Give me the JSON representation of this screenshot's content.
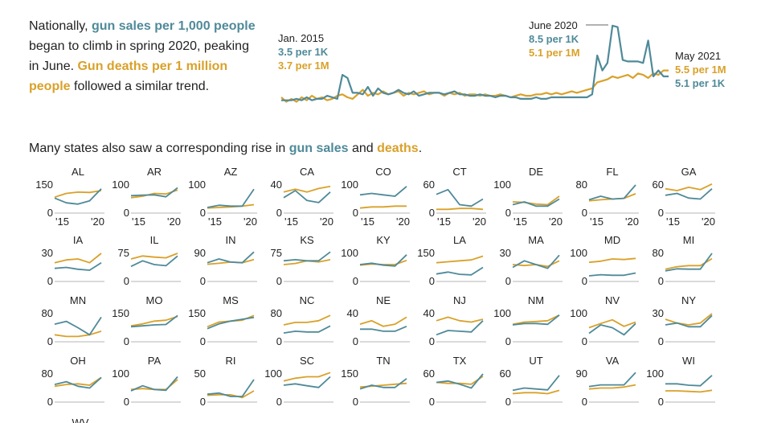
{
  "intro": {
    "t1": "Nationally, ",
    "t2": "gun sales per 1,000 people",
    "t3": " began to climb in spring 2020, peaking in June. ",
    "t4": "Gun deaths per 1 million people",
    "t5": " followed a similar trend."
  },
  "subtitle": {
    "t1": "Many states also saw a corresponding rise in ",
    "t2": "gun sales",
    "t3": " and ",
    "t4": "deaths",
    "t5": "."
  },
  "colors": {
    "sales": "#4f8a99",
    "deaths": "#d9a12a",
    "axis": "#999999",
    "text": "#222222"
  },
  "chart_data": [
    {
      "type": "line",
      "title": "",
      "x_range": [
        "Jan. 2015",
        "May 2021"
      ],
      "annotations": [
        {
          "label": "Jan. 2015",
          "sales": "3.5 per 1K",
          "deaths": "3.7 per 1M"
        },
        {
          "label": "June 2020",
          "sales": "8.5 per 1K",
          "deaths": "5.1 per 1M"
        },
        {
          "label": "May 2021",
          "deaths": "5.5 per 1M",
          "sales": "5.1 per 1K"
        }
      ],
      "series": [
        {
          "name": "gun sales per 1,000 people",
          "values": [
            3.5,
            3.5,
            3.5,
            3.6,
            3.5,
            3.7,
            3.5,
            3.6,
            3.6,
            3.8,
            3.7,
            3.6,
            5.2,
            5.0,
            4.0,
            4.0,
            3.9,
            4.4,
            3.8,
            4.3,
            4.0,
            3.9,
            4.0,
            4.2,
            4.0,
            3.9,
            4.1,
            3.8,
            3.9,
            4.0,
            4.0,
            4.0,
            3.9,
            4.0,
            4.1,
            3.9,
            3.9,
            3.8,
            3.8,
            3.9,
            3.8,
            3.8,
            3.7,
            3.8,
            3.8,
            3.7,
            3.7,
            3.6,
            3.6,
            3.6,
            3.7,
            3.6,
            3.6,
            3.7,
            3.7,
            3.7,
            3.7,
            3.7,
            3.7,
            3.7,
            3.7,
            3.9,
            6.5,
            5.5,
            6.0,
            8.5,
            8.4,
            6.2,
            6.1,
            6.1,
            6.1,
            6.0,
            7.5,
            5.1,
            5.5,
            5.1,
            5.1
          ]
        },
        {
          "name": "gun deaths per 1 million people",
          "values": [
            3.7,
            3.4,
            3.6,
            3.4,
            3.7,
            3.5,
            3.8,
            3.6,
            3.7,
            3.5,
            3.6,
            3.8,
            3.9,
            3.7,
            3.6,
            3.9,
            4.2,
            3.8,
            4.0,
            3.9,
            4.1,
            3.9,
            4.0,
            4.1,
            3.8,
            4.0,
            3.9,
            4.0,
            4.1,
            3.9,
            4.0,
            4.0,
            3.8,
            4.0,
            3.9,
            4.0,
            3.8,
            3.9,
            3.9,
            3.8,
            3.9,
            3.8,
            3.8,
            3.9,
            3.8,
            3.7,
            3.8,
            3.9,
            3.8,
            3.8,
            3.9,
            3.9,
            4.0,
            3.9,
            4.0,
            3.9,
            4.0,
            4.1,
            4.0,
            4.1,
            4.2,
            4.3,
            4.7,
            4.8,
            4.9,
            5.1,
            5.0,
            5.1,
            5.2,
            5.0,
            5.3,
            5.2,
            5.0,
            5.3,
            5.2,
            5.5,
            5.5
          ]
        }
      ]
    },
    {
      "type": "line",
      "x_tick_labels": [
        "'15",
        "'20"
      ],
      "states": [
        {
          "name": "AL",
          "ymax": 150,
          "sales": [
            80,
            55,
            48,
            65,
            130
          ],
          "deaths": [
            85,
            105,
            112,
            110,
            120
          ]
        },
        {
          "name": "AR",
          "ymax": 100,
          "sales": [
            62,
            64,
            65,
            58,
            90
          ],
          "deaths": [
            55,
            60,
            70,
            68,
            82
          ]
        },
        {
          "name": "AZ",
          "ymax": 100,
          "sales": [
            20,
            28,
            25,
            25,
            85
          ],
          "deaths": [
            18,
            20,
            22,
            25,
            30
          ]
        },
        {
          "name": "CA",
          "ymax": 40,
          "sales": [
            22,
            32,
            18,
            15,
            30
          ],
          "deaths": [
            30,
            34,
            30,
            35,
            38
          ]
        },
        {
          "name": "CO",
          "ymax": 100,
          "sales": [
            65,
            70,
            65,
            60,
            95
          ],
          "deaths": [
            18,
            22,
            22,
            25,
            25
          ]
        },
        {
          "name": "CT",
          "ymax": 60,
          "sales": [
            40,
            50,
            18,
            15,
            30
          ],
          "deaths": [
            8,
            8,
            10,
            10,
            8
          ]
        },
        {
          "name": "DE",
          "ymax": 100,
          "sales": [
            30,
            40,
            25,
            25,
            50
          ],
          "deaths": [
            40,
            38,
            32,
            30,
            60
          ]
        },
        {
          "name": "FL",
          "ymax": 80,
          "sales": [
            38,
            48,
            40,
            42,
            80
          ],
          "deaths": [
            35,
            38,
            40,
            42,
            55
          ]
        },
        {
          "name": "GA",
          "ymax": 60,
          "sales": [
            38,
            42,
            32,
            30,
            52
          ],
          "deaths": [
            52,
            48,
            55,
            50,
            62
          ]
        },
        {
          "name": "IA",
          "ymax": 30,
          "sales": [
            14,
            15,
            13,
            12,
            20
          ],
          "deaths": [
            20,
            23,
            24,
            20,
            30
          ]
        },
        {
          "name": "IL",
          "ymax": 75,
          "sales": [
            40,
            55,
            45,
            42,
            68
          ],
          "deaths": [
            60,
            68,
            65,
            63,
            75
          ]
        },
        {
          "name": "IN",
          "ymax": 90,
          "sales": [
            60,
            72,
            62,
            60,
            95
          ],
          "deaths": [
            55,
            58,
            62,
            60,
            70
          ]
        },
        {
          "name": "KS",
          "ymax": 75,
          "sales": [
            55,
            58,
            55,
            55,
            90
          ],
          "deaths": [
            45,
            48,
            55,
            52,
            58
          ]
        },
        {
          "name": "KY",
          "ymax": 100,
          "sales": [
            60,
            65,
            58,
            55,
            95
          ],
          "deaths": [
            58,
            62,
            60,
            60,
            75
          ]
        },
        {
          "name": "LA",
          "ymax": 150,
          "sales": [
            40,
            50,
            38,
            35,
            75
          ],
          "deaths": [
            100,
            105,
            110,
            115,
            135
          ]
        },
        {
          "name": "MA",
          "ymax": 30,
          "sales": [
            15,
            22,
            18,
            14,
            28
          ],
          "deaths": [
            18,
            17,
            18,
            16,
            22
          ]
        },
        {
          "name": "MD",
          "ymax": 100,
          "sales": [
            20,
            24,
            22,
            22,
            30
          ],
          "deaths": [
            68,
            72,
            80,
            78,
            82
          ]
        },
        {
          "name": "MI",
          "ymax": 80,
          "sales": [
            30,
            36,
            35,
            35,
            80
          ],
          "deaths": [
            35,
            42,
            45,
            45,
            65
          ]
        },
        {
          "name": "MN",
          "ymax": 80,
          "sales": [
            50,
            58,
            40,
            20,
            70
          ],
          "deaths": [
            20,
            15,
            15,
            20,
            30
          ]
        },
        {
          "name": "MO",
          "ymax": 150,
          "sales": [
            80,
            85,
            90,
            92,
            140
          ],
          "deaths": [
            85,
            95,
            110,
            115,
            135
          ]
        },
        {
          "name": "MS",
          "ymax": 150,
          "sales": [
            70,
            95,
            110,
            120,
            130
          ],
          "deaths": [
            80,
            105,
            110,
            115,
            140
          ]
        },
        {
          "name": "NC",
          "ymax": 80,
          "sales": [
            25,
            30,
            28,
            28,
            45
          ],
          "deaths": [
            48,
            55,
            55,
            60,
            75
          ]
        },
        {
          "name": "NE",
          "ymax": 40,
          "sales": [
            18,
            18,
            15,
            15,
            22
          ],
          "deaths": [
            25,
            30,
            22,
            25,
            35
          ]
        },
        {
          "name": "NJ",
          "ymax": 40,
          "sales": [
            10,
            16,
            15,
            14,
            30
          ],
          "deaths": [
            30,
            35,
            30,
            28,
            32
          ]
        },
        {
          "name": "NM",
          "ymax": 100,
          "sales": [
            60,
            65,
            65,
            62,
            95
          ],
          "deaths": [
            62,
            70,
            72,
            75,
            95
          ]
        },
        {
          "name": "NV",
          "ymax": 100,
          "sales": [
            30,
            60,
            50,
            25,
            65
          ],
          "deaths": [
            50,
            65,
            78,
            55,
            70
          ]
        },
        {
          "name": "NY",
          "ymax": 30,
          "sales": [
            18,
            20,
            16,
            16,
            28
          ],
          "deaths": [
            24,
            20,
            18,
            20,
            30
          ]
        },
        {
          "name": "OH",
          "ymax": 80,
          "sales": [
            50,
            58,
            45,
            40,
            70
          ],
          "deaths": [
            45,
            50,
            52,
            48,
            70
          ]
        },
        {
          "name": "PA",
          "ymax": 100,
          "sales": [
            40,
            58,
            45,
            42,
            90
          ],
          "deaths": [
            45,
            48,
            45,
            45,
            80
          ]
        },
        {
          "name": "RI",
          "ymax": 50,
          "sales": [
            14,
            16,
            10,
            10,
            40
          ],
          "deaths": [
            12,
            13,
            13,
            8,
            20
          ]
        },
        {
          "name": "SC",
          "ymax": 100,
          "sales": [
            60,
            65,
            58,
            52,
            90
          ],
          "deaths": [
            75,
            85,
            90,
            90,
            105
          ]
        },
        {
          "name": "TN",
          "ymax": 150,
          "sales": [
            70,
            90,
            78,
            78,
            125
          ],
          "deaths": [
            80,
            85,
            90,
            95,
            100
          ]
        },
        {
          "name": "TX",
          "ymax": 60,
          "sales": [
            42,
            45,
            38,
            30,
            60
          ],
          "deaths": [
            42,
            40,
            40,
            38,
            55
          ]
        },
        {
          "name": "UT",
          "ymax": 60,
          "sales": [
            25,
            30,
            28,
            26,
            57
          ],
          "deaths": [
            18,
            20,
            20,
            18,
            25
          ]
        },
        {
          "name": "VA",
          "ymax": 90,
          "sales": [
            50,
            55,
            55,
            55,
            95
          ],
          "deaths": [
            42,
            45,
            45,
            48,
            55
          ]
        },
        {
          "name": "WI",
          "ymax": 100,
          "sales": [
            65,
            65,
            60,
            58,
            95
          ],
          "deaths": [
            40,
            40,
            38,
            36,
            42
          ]
        }
      ],
      "partial_label": "WV"
    }
  ]
}
